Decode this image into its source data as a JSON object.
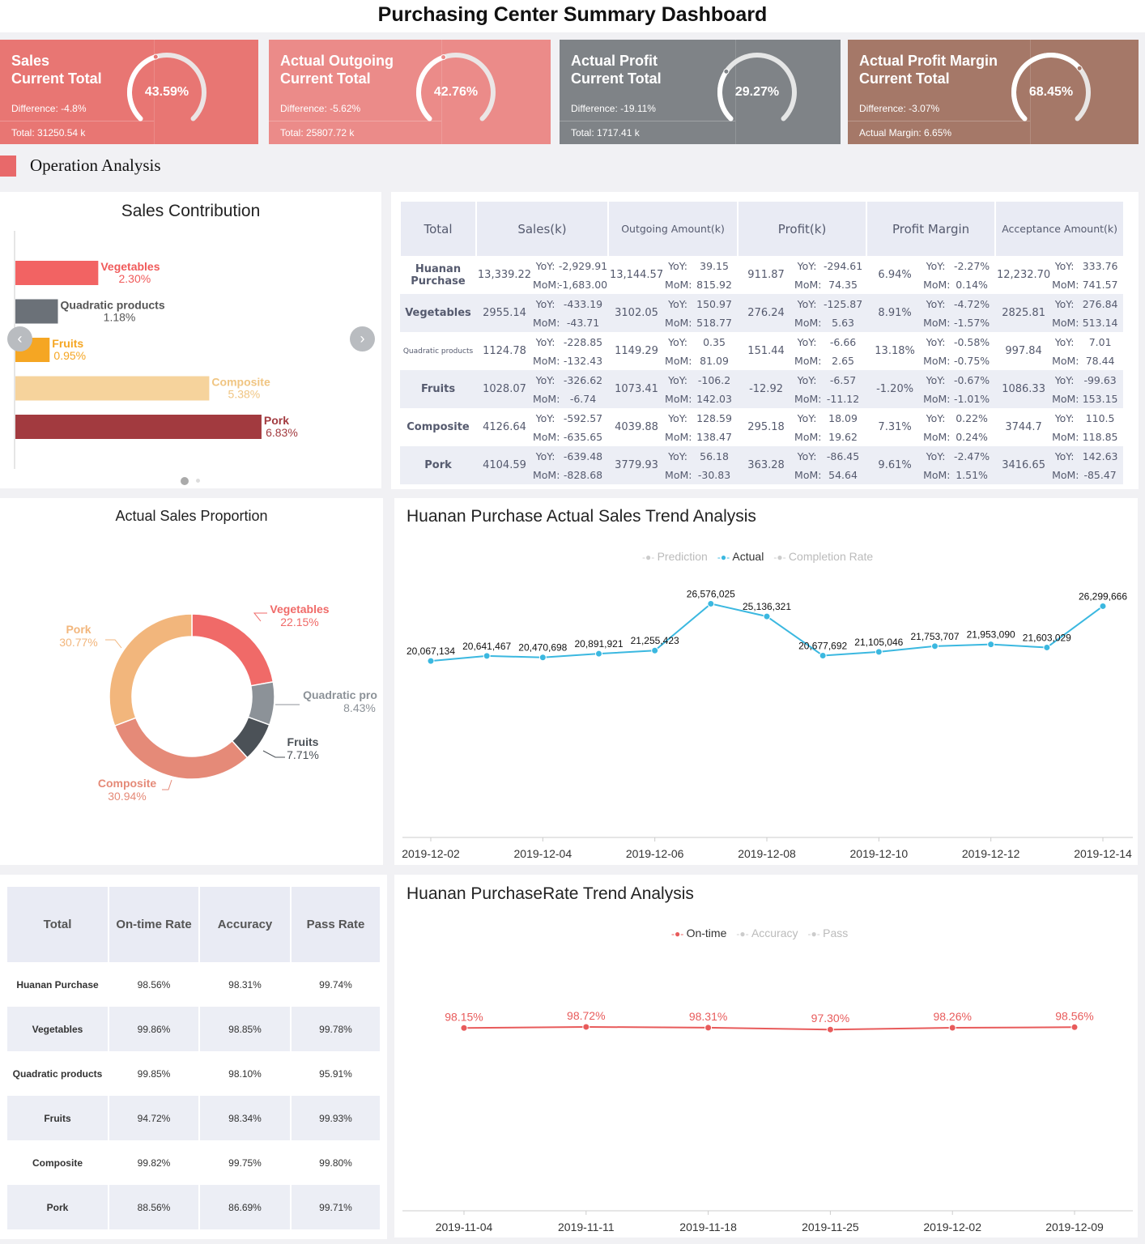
{
  "header": {
    "title": "Purchasing Center Summary Dashboard"
  },
  "kpis": [
    {
      "title1": "Sales",
      "title2": "Current Total",
      "difference": "Difference: -4.8%",
      "total": "Total: 31250.54 k",
      "percent": "43.59%",
      "value": 43.59,
      "color": "#e87673"
    },
    {
      "title1": "Actual Outgoing",
      "title2": "Current Total",
      "difference": "Difference: -5.62%",
      "total": "Total: 25807.72 k",
      "percent": "42.76%",
      "value": 42.76,
      "color": "#eb8b89"
    },
    {
      "title1": "Actual Profit",
      "title2": "Current Total",
      "difference": "Difference: -19.11%",
      "total": "Total: 1717.41 k",
      "percent": "29.27%",
      "value": 29.27,
      "color": "#7f8387"
    },
    {
      "title1": "Actual Profit Margin",
      "title2": "Current Total",
      "difference": "Difference: -3.07%",
      "total": "Actual Margin: 6.65%",
      "percent": "68.45%",
      "value": 68.45,
      "color": "#a57868"
    }
  ],
  "section": {
    "title": "Operation Analysis"
  },
  "sales_contribution": {
    "title": "Sales Contribution",
    "chart_data": {
      "type": "bar",
      "categories": [
        "Vegetables",
        "Quadratic products",
        "Fruits",
        "Composite",
        "Pork"
      ],
      "values": [
        2.3,
        1.18,
        0.95,
        5.38,
        6.83
      ],
      "labels": [
        "2.30%",
        "1.18%",
        "0.95%",
        "5.38%",
        "6.83%"
      ],
      "colors": [
        "#f26363",
        "#6b7178",
        "#f5a623",
        "#f6d39c",
        "#a23a3f"
      ]
    }
  },
  "main_table": {
    "headers": [
      "Total",
      "Sales(k)",
      "Outgoing Amount(k)",
      "Profit(k)",
      "Profit Margin",
      "Acceptance Amount(k)"
    ],
    "yoy": "YoY:",
    "mom": "MoM:",
    "rows": [
      {
        "name": "Huanan Purchase",
        "cells": [
          [
            "13,339.22",
            "-2,929.91",
            "-1,683.00"
          ],
          [
            "13,144.57",
            "39.15",
            "815.92"
          ],
          [
            "911.87",
            "-294.61",
            "74.35"
          ],
          [
            "6.94%",
            "-2.27%",
            "0.14%"
          ],
          [
            "12,232.70",
            "333.76",
            "741.57"
          ]
        ]
      },
      {
        "name": "Vegetables",
        "cells": [
          [
            "2955.14",
            "-433.19",
            "-43.71"
          ],
          [
            "3102.05",
            "150.97",
            "518.77"
          ],
          [
            "276.24",
            "-125.87",
            "5.63"
          ],
          [
            "8.91%",
            "-4.72%",
            "-1.57%"
          ],
          [
            "2825.81",
            "276.84",
            "513.14"
          ]
        ]
      },
      {
        "name": "Quadratic products",
        "cells": [
          [
            "1124.78",
            "-228.85",
            "-132.43"
          ],
          [
            "1149.29",
            "0.35",
            "81.09"
          ],
          [
            "151.44",
            "-6.66",
            "2.65"
          ],
          [
            "13.18%",
            "-0.58%",
            "-0.75%"
          ],
          [
            "997.84",
            "7.01",
            "78.44"
          ]
        ]
      },
      {
        "name": "Fruits",
        "cells": [
          [
            "1028.07",
            "-326.62",
            "-6.74"
          ],
          [
            "1073.41",
            "-106.2",
            "142.03"
          ],
          [
            "-12.92",
            "-6.57",
            "-11.12"
          ],
          [
            "-1.20%",
            "-0.67%",
            "-1.01%"
          ],
          [
            "1086.33",
            "-99.63",
            "153.15"
          ]
        ]
      },
      {
        "name": "Composite",
        "cells": [
          [
            "4126.64",
            "-592.57",
            "-635.65"
          ],
          [
            "4039.88",
            "128.59",
            "138.47"
          ],
          [
            "295.18",
            "18.09",
            "19.62"
          ],
          [
            "7.31%",
            "0.22%",
            "0.24%"
          ],
          [
            "3744.7",
            "110.5",
            "118.85"
          ]
        ]
      },
      {
        "name": "Pork",
        "cells": [
          [
            "4104.59",
            "-639.48",
            "-828.68"
          ],
          [
            "3779.93",
            "56.18",
            "-30.83"
          ],
          [
            "363.28",
            "-86.45",
            "54.64"
          ],
          [
            "9.61%",
            "-2.47%",
            "1.51%"
          ],
          [
            "3416.65",
            "142.63",
            "-85.47"
          ]
        ]
      }
    ]
  },
  "proportion": {
    "title": "Actual Sales Proportion",
    "chart_data": {
      "type": "pie",
      "donut": true,
      "categories": [
        "Vegetables",
        "Quadratic products",
        "Fruits",
        "Composite",
        "Pork"
      ],
      "labels": [
        "Vegetables",
        "Quadratic pro",
        "Fruits",
        "Composite",
        "Pork"
      ],
      "values": [
        22.15,
        8.43,
        7.71,
        30.94,
        30.77
      ],
      "value_labels": [
        "22.15%",
        "8.43%",
        "7.71%",
        "30.94%",
        "30.77%"
      ],
      "colors": [
        "#f06a68",
        "#8c9298",
        "#4b5157",
        "#e58a78",
        "#f2b67c"
      ]
    }
  },
  "sales_trend": {
    "title": "Huanan Purchase Actual Sales Trend Analysis",
    "legend": [
      {
        "label": "Prediction",
        "active": false
      },
      {
        "label": "Actual",
        "active": true
      },
      {
        "label": "Completion Rate",
        "active": false
      }
    ],
    "chart_data": {
      "type": "line",
      "x": [
        "2019-12-02",
        "2019-12-03",
        "2019-12-04",
        "2019-12-05",
        "2019-12-06",
        "2019-12-07",
        "2019-12-08",
        "2019-12-09",
        "2019-12-10",
        "2019-12-11",
        "2019-12-12",
        "2019-12-13",
        "2019-12-14"
      ],
      "xticks": [
        "2019-12-02",
        "2019-12-04",
        "2019-12-06",
        "2019-12-08",
        "2019-12-10",
        "2019-12-12",
        "2019-12-14"
      ],
      "series": [
        {
          "name": "Actual",
          "values": [
            20067134,
            20641467,
            20470698,
            20891921,
            21255423,
            26576025,
            25136321,
            20677692,
            21105046,
            21753707,
            21953090,
            21603029,
            26299666
          ],
          "labels": [
            "20,067,134",
            "20,641,467",
            "20,470,698",
            "20,891,921",
            "21,255,423",
            "26,576,025",
            "25,136,321",
            "20,677,692",
            "21,105,046",
            "21,753,707",
            "21,953,090",
            "21,603,029",
            "26,299,666"
          ],
          "color": "#3bb8e0"
        }
      ],
      "ylim": [
        0,
        35000000
      ],
      "grid": false
    }
  },
  "rate_table": {
    "headers": [
      "Total",
      "On-time Rate",
      "Accuracy",
      "Pass Rate"
    ],
    "rows": [
      [
        "Huanan Purchase",
        "98.56%",
        "98.31%",
        "99.74%"
      ],
      [
        "Vegetables",
        "99.86%",
        "98.85%",
        "99.78%"
      ],
      [
        "Quadratic products",
        "99.85%",
        "98.10%",
        "95.91%"
      ],
      [
        "Fruits",
        "94.72%",
        "98.34%",
        "99.93%"
      ],
      [
        "Composite",
        "99.82%",
        "99.75%",
        "99.80%"
      ],
      [
        "Pork",
        "88.56%",
        "86.69%",
        "99.71%"
      ]
    ]
  },
  "rate_trend": {
    "title": "Huanan PurchaseRate Trend Analysis",
    "legend": [
      {
        "label": "On-time",
        "active": true
      },
      {
        "label": "Accuracy",
        "active": false
      },
      {
        "label": "Pass",
        "active": false
      }
    ],
    "chart_data": {
      "type": "line",
      "x": [
        "2019-11-04",
        "2019-11-11",
        "2019-11-18",
        "2019-11-25",
        "2019-12-02",
        "2019-12-09"
      ],
      "series": [
        {
          "name": "On-time",
          "values": [
            98.15,
            98.72,
            98.31,
            97.3,
            98.26,
            98.56
          ],
          "labels": [
            "98.15%",
            "98.72%",
            "98.31%",
            "97.30%",
            "98.26%",
            "98.56%"
          ],
          "color": "#e85b5b"
        }
      ],
      "ylim": [
        0,
        100
      ],
      "grid": false
    }
  }
}
